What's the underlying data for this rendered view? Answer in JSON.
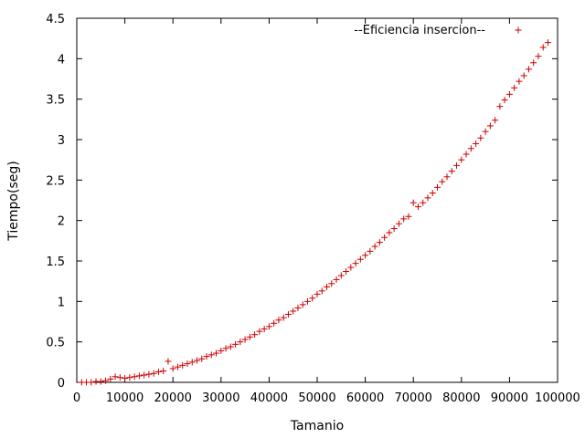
{
  "chart_data": {
    "type": "scatter",
    "title": "",
    "xlabel": "Tamanio",
    "ylabel": "Tiempo(seg)",
    "xlim": [
      0,
      100000
    ],
    "ylim": [
      0,
      4.5
    ],
    "x_ticks": [
      0,
      10000,
      20000,
      30000,
      40000,
      50000,
      60000,
      70000,
      80000,
      90000,
      100000
    ],
    "y_ticks": [
      0,
      0.5,
      1,
      1.5,
      2,
      2.5,
      3,
      3.5,
      4,
      4.5
    ],
    "x_tick_labels": [
      "0",
      "10000",
      "20000",
      "30000",
      "40000",
      "50000",
      "60000",
      "70000",
      "80000",
      "90000",
      "100000"
    ],
    "y_tick_labels": [
      "0",
      "0.5",
      "1",
      "1.5",
      "2",
      "2.5",
      "3",
      "3.5",
      "4",
      "4.5"
    ],
    "grid": false,
    "legend_position": "top-right",
    "marker": "plus",
    "color": "#cc0000",
    "series": [
      {
        "name": "--Eficiencia insercion--",
        "points": [
          [
            1000,
            0.0
          ],
          [
            2000,
            0.0
          ],
          [
            3000,
            0.0
          ],
          [
            4000,
            0.01
          ],
          [
            5000,
            0.01
          ],
          [
            6000,
            0.02
          ],
          [
            7000,
            0.04
          ],
          [
            8000,
            0.07
          ],
          [
            9000,
            0.06
          ],
          [
            10000,
            0.05
          ],
          [
            11000,
            0.06
          ],
          [
            12000,
            0.07
          ],
          [
            13000,
            0.08
          ],
          [
            14000,
            0.09
          ],
          [
            15000,
            0.1
          ],
          [
            16000,
            0.11
          ],
          [
            17000,
            0.13
          ],
          [
            18000,
            0.14
          ],
          [
            19000,
            0.26
          ],
          [
            20000,
            0.17
          ],
          [
            21000,
            0.19
          ],
          [
            22000,
            0.21
          ],
          [
            23000,
            0.23
          ],
          [
            24000,
            0.25
          ],
          [
            25000,
            0.27
          ],
          [
            26000,
            0.29
          ],
          [
            27000,
            0.32
          ],
          [
            28000,
            0.34
          ],
          [
            29000,
            0.36
          ],
          [
            30000,
            0.39
          ],
          [
            31000,
            0.42
          ],
          [
            32000,
            0.44
          ],
          [
            33000,
            0.47
          ],
          [
            34000,
            0.5
          ],
          [
            35000,
            0.53
          ],
          [
            36000,
            0.56
          ],
          [
            37000,
            0.59
          ],
          [
            38000,
            0.63
          ],
          [
            39000,
            0.66
          ],
          [
            40000,
            0.69
          ],
          [
            41000,
            0.73
          ],
          [
            42000,
            0.77
          ],
          [
            43000,
            0.8
          ],
          [
            44000,
            0.84
          ],
          [
            45000,
            0.88
          ],
          [
            46000,
            0.92
          ],
          [
            47000,
            0.96
          ],
          [
            48000,
            1.0
          ],
          [
            49000,
            1.04
          ],
          [
            50000,
            1.09
          ],
          [
            51000,
            1.13
          ],
          [
            52000,
            1.18
          ],
          [
            53000,
            1.22
          ],
          [
            54000,
            1.27
          ],
          [
            55000,
            1.32
          ],
          [
            56000,
            1.37
          ],
          [
            57000,
            1.42
          ],
          [
            58000,
            1.47
          ],
          [
            59000,
            1.52
          ],
          [
            60000,
            1.57
          ],
          [
            61000,
            1.62
          ],
          [
            62000,
            1.68
          ],
          [
            63000,
            1.73
          ],
          [
            64000,
            1.79
          ],
          [
            65000,
            1.85
          ],
          [
            66000,
            1.9
          ],
          [
            67000,
            1.96
          ],
          [
            68000,
            2.02
          ],
          [
            69000,
            2.05
          ],
          [
            70000,
            2.22
          ],
          [
            71000,
            2.17
          ],
          [
            72000,
            2.22
          ],
          [
            73000,
            2.28
          ],
          [
            74000,
            2.34
          ],
          [
            75000,
            2.41
          ],
          [
            76000,
            2.48
          ],
          [
            77000,
            2.54
          ],
          [
            78000,
            2.61
          ],
          [
            79000,
            2.68
          ],
          [
            80000,
            2.75
          ],
          [
            81000,
            2.82
          ],
          [
            82000,
            2.89
          ],
          [
            83000,
            2.95
          ],
          [
            84000,
            3.02
          ],
          [
            85000,
            3.1
          ],
          [
            86000,
            3.17
          ],
          [
            87000,
            3.24
          ],
          [
            88000,
            3.41
          ],
          [
            89000,
            3.49
          ],
          [
            90000,
            3.56
          ],
          [
            91000,
            3.64
          ],
          [
            92000,
            3.72
          ],
          [
            93000,
            3.79
          ],
          [
            94000,
            3.87
          ],
          [
            95000,
            3.95
          ],
          [
            96000,
            4.03
          ],
          [
            97000,
            4.14
          ],
          [
            98000,
            4.2
          ]
        ]
      }
    ]
  }
}
